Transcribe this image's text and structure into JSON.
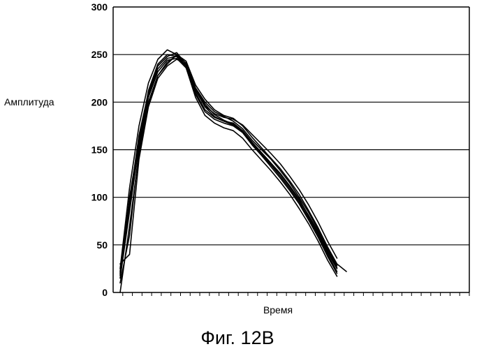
{
  "chart_data": {
    "type": "line",
    "title": "",
    "xlabel": "Время",
    "ylabel": "Амплитуда",
    "ylim": [
      0,
      300
    ],
    "yticks": [
      "0",
      "50",
      "100",
      "150",
      "200",
      "250",
      "300"
    ],
    "x_tick_count": 37,
    "grid": "horizontal",
    "legend": "none",
    "line_color": "#000000",
    "x": [
      0,
      1,
      2,
      3,
      4,
      5,
      6,
      7,
      8,
      9,
      10,
      11,
      12,
      13,
      14,
      15,
      16,
      17,
      18,
      19,
      20,
      21,
      22,
      23,
      24,
      25,
      26,
      27,
      28,
      29,
      30
    ],
    "series": [
      {
        "values": [
          20,
          95,
          165,
          210,
          238,
          248,
          252,
          240,
          213,
          195,
          185,
          180,
          178,
          170,
          158,
          147,
          136,
          125,
          112,
          98,
          80,
          62,
          42,
          25,
          null,
          null,
          null,
          null,
          null,
          null,
          null
        ]
      },
      {
        "values": [
          15,
          85,
          155,
          205,
          232,
          244,
          246,
          236,
          208,
          190,
          182,
          178,
          175,
          168,
          155,
          144,
          132,
          120,
          107,
          93,
          76,
          58,
          38,
          20,
          null,
          null,
          null,
          null,
          null,
          null,
          null
        ]
      },
      {
        "values": [
          30,
          40,
          140,
          195,
          225,
          238,
          245,
          240,
          215,
          200,
          190,
          185,
          180,
          172,
          160,
          150,
          140,
          128,
          115,
          100,
          84,
          66,
          46,
          28,
          null,
          null,
          null,
          null,
          null,
          null,
          null
        ]
      },
      {
        "values": [
          25,
          110,
          175,
          220,
          245,
          255,
          250,
          238,
          210,
          192,
          184,
          180,
          176,
          168,
          156,
          145,
          134,
          122,
          109,
          95,
          78,
          60,
          40,
          22,
          null,
          null,
          null,
          null,
          null,
          null,
          null
        ]
      },
      {
        "values": [
          10,
          60,
          150,
          200,
          228,
          240,
          250,
          243,
          218,
          203,
          192,
          186,
          183,
          175,
          163,
          152,
          141,
          130,
          117,
          103,
          86,
          68,
          48,
          30,
          22,
          null,
          null,
          null,
          null,
          null,
          null
        ]
      },
      {
        "values": [
          18,
          100,
          160,
          208,
          235,
          246,
          248,
          236,
          205,
          186,
          178,
          173,
          170,
          162,
          150,
          139,
          128,
          116,
          103,
          88,
          72,
          54,
          34,
          17,
          null,
          null,
          null,
          null,
          null,
          null,
          null
        ]
      },
      {
        "values": [
          22,
          90,
          158,
          212,
          240,
          250,
          248,
          238,
          212,
          196,
          188,
          184,
          182,
          176,
          166,
          156,
          146,
          135,
          122,
          108,
          92,
          74,
          54,
          36,
          null,
          null,
          null,
          null,
          null,
          null,
          null
        ]
      },
      {
        "values": [
          0,
          70,
          145,
          198,
          228,
          242,
          249,
          241,
          214,
          198,
          187,
          181,
          177,
          169,
          157,
          146,
          135,
          124,
          111,
          97,
          81,
          64,
          44,
          26,
          null,
          null,
          null,
          null,
          null,
          null,
          null
        ]
      }
    ]
  },
  "caption": "Фиг. 12B"
}
